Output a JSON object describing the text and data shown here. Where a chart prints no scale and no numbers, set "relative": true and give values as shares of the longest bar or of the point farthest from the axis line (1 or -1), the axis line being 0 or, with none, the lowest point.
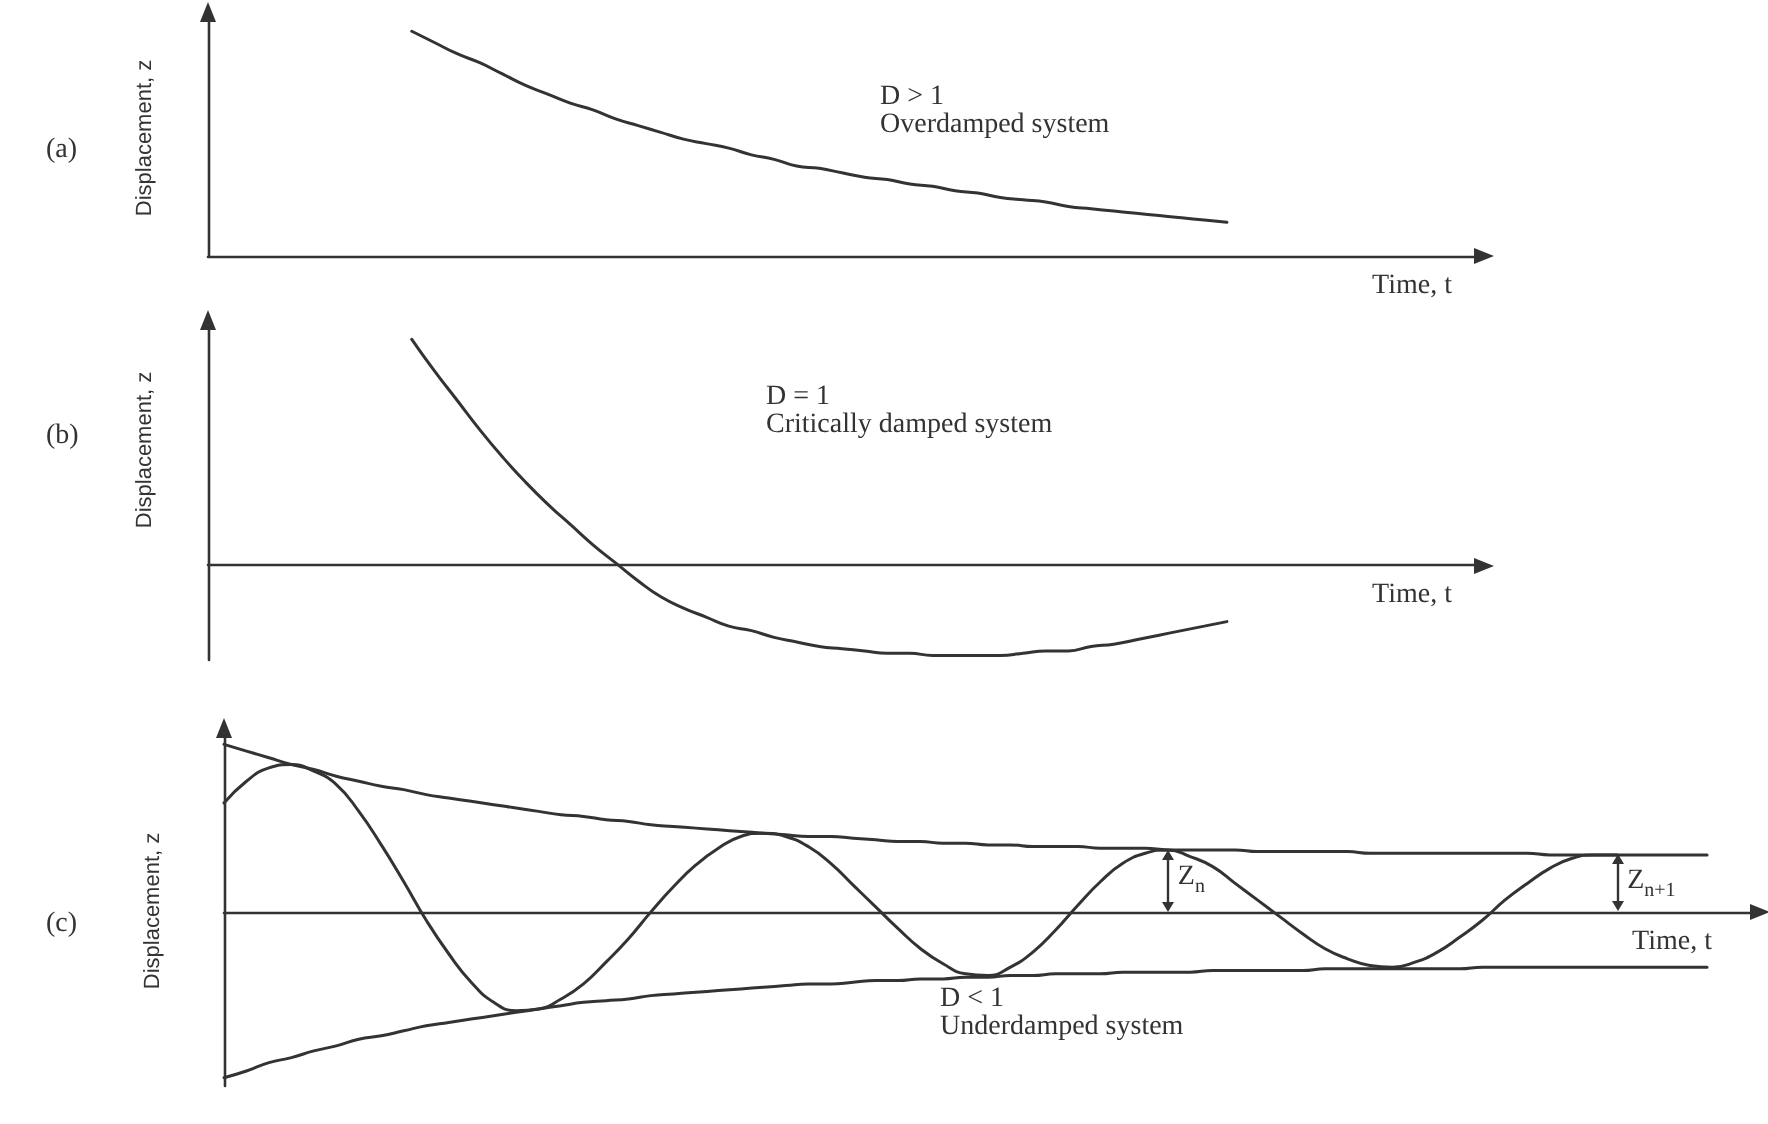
{
  "chart_data": [
    {
      "type": "line",
      "title": "(a)",
      "xlabel": "Time, t",
      "ylabel": "Displacement, z",
      "annotations": [
        "D > 1",
        "Overdamped system"
      ],
      "relative": true,
      "categories": [
        null,
        null,
        null,
        null,
        null,
        null,
        null,
        null,
        null,
        null,
        null,
        null,
        null,
        null,
        null,
        null,
        null,
        null,
        null,
        null,
        null,
        null,
        null,
        null,
        null,
        null,
        null,
        null,
        null,
        null,
        null,
        null,
        null,
        null,
        null,
        null,
        null,
        null,
        null,
        null,
        null,
        null,
        null,
        null,
        null,
        null,
        null,
        null,
        null,
        null,
        null,
        null,
        null,
        null,
        null,
        null,
        null
      ],
      "series": [
        {
          "color": "#333333",
          "values": [
            null,
            null,
            null,
            null,
            null,
            null,
            null,
            null,
            null,
            1.0,
            0.95,
            0.9,
            0.86,
            0.81,
            0.76,
            0.72,
            0.68,
            0.65,
            0.61,
            0.58,
            0.55,
            0.52,
            0.5,
            0.48,
            0.45,
            0.43,
            0.4,
            0.39,
            0.37,
            0.35,
            0.34,
            0.32,
            0.31,
            0.29,
            0.28,
            0.26,
            0.25,
            0.24,
            0.22,
            0.21,
            0.2,
            0.19,
            0.18,
            0.17,
            0.16,
            0.15,
            null,
            null,
            null,
            null,
            null,
            null,
            null,
            null,
            null,
            null,
            null
          ]
        }
      ]
    },
    {
      "type": "line",
      "title": "(b)",
      "xlabel": "Time, t",
      "ylabel": "Displacement, z",
      "annotations": [
        "D = 1",
        "Critically damped system"
      ],
      "relative": true,
      "categories": [
        null,
        null,
        null,
        null,
        null,
        null,
        null,
        null,
        null,
        null,
        null,
        null,
        null,
        null,
        null,
        null,
        null,
        null,
        null,
        null,
        null,
        null,
        null,
        null,
        null,
        null,
        null,
        null,
        null,
        null,
        null,
        null,
        null,
        null,
        null,
        null,
        null,
        null,
        null,
        null,
        null,
        null,
        null,
        null,
        null,
        null,
        null,
        null,
        null,
        null,
        null,
        null,
        null,
        null,
        null,
        null,
        null
      ],
      "series": [
        {
          "color": "#333333",
          "values": [
            null,
            null,
            null,
            null,
            null,
            null,
            null,
            null,
            null,
            1.0,
            0.86,
            0.73,
            0.6,
            0.48,
            0.37,
            0.27,
            0.18,
            0.09,
            0.01,
            -0.07,
            -0.14,
            -0.19,
            -0.23,
            -0.27,
            -0.29,
            -0.32,
            -0.34,
            -0.36,
            -0.37,
            -0.38,
            -0.39,
            -0.39,
            -0.4,
            -0.4,
            -0.4,
            -0.4,
            -0.39,
            -0.38,
            -0.38,
            -0.36,
            -0.35,
            -0.33,
            -0.31,
            -0.29,
            -0.27,
            -0.25,
            null,
            null,
            null,
            null,
            null,
            null,
            null,
            null,
            null,
            null,
            null
          ]
        }
      ]
    },
    {
      "type": "line",
      "title": "(c)",
      "xlabel": "Time, t",
      "ylabel": "Displacement, z",
      "annotations": [
        "Z$_{n}$",
        "Z$_{n+1}$",
        "D < 1",
        "Underdamped system"
      ],
      "relative": true,
      "categories": [
        null,
        null,
        null,
        null,
        null,
        null,
        null,
        null,
        null,
        null,
        null,
        null,
        null,
        null,
        null,
        null,
        null,
        null,
        null,
        null,
        null,
        null,
        null,
        null,
        null,
        null,
        null,
        null,
        null,
        null,
        null,
        null,
        null,
        null,
        null,
        null,
        null,
        null,
        null,
        null,
        null,
        null,
        null,
        null,
        null,
        null,
        null,
        null,
        null,
        null,
        null,
        null,
        null,
        null,
        null,
        null,
        null,
        null,
        null,
        null,
        null,
        null,
        null,
        null,
        null,
        null,
        null,
        null,
        null
      ],
      "series": [
        {
          "color": "#333333",
          "values": [
            0.65,
            0.78,
            0.86,
            0.88,
            0.84,
            0.76,
            0.6,
            0.4,
            0.18,
            -0.05,
            -0.25,
            -0.42,
            -0.54,
            -0.59,
            -0.58,
            -0.52,
            -0.43,
            -0.3,
            -0.16,
            0.0,
            0.15,
            0.28,
            0.38,
            0.45,
            0.47,
            0.45,
            0.39,
            0.29,
            0.16,
            0.03,
            -0.1,
            -0.22,
            -0.31,
            -0.37,
            -0.38,
            -0.33,
            -0.24,
            -0.11,
            0.04,
            0.18,
            0.29,
            0.35,
            0.37,
            0.33,
            0.27,
            0.17,
            0.07,
            -0.03,
            -0.13,
            -0.22,
            -0.28,
            -0.32,
            -0.33,
            -0.3,
            -0.24,
            -0.15,
            -0.05,
            0.07,
            0.17,
            0.26,
            0.32,
            0.34,
            0.34,
            null,
            null,
            null,
            null,
            null,
            null
          ]
        },
        {
          "color": "#333333",
          "values": [
            1.0,
            0.96,
            0.92,
            0.88,
            0.85,
            0.81,
            0.78,
            0.75,
            0.73,
            0.7,
            0.68,
            0.66,
            0.64,
            0.62,
            0.6,
            0.58,
            0.57,
            0.55,
            0.54,
            0.52,
            0.51,
            0.5,
            0.49,
            0.48,
            0.47,
            0.46,
            0.45,
            0.45,
            0.44,
            0.43,
            0.42,
            0.42,
            0.41,
            0.41,
            0.4,
            0.4,
            0.39,
            0.39,
            0.39,
            0.38,
            0.38,
            0.38,
            0.37,
            0.37,
            0.37,
            0.37,
            0.36,
            0.36,
            0.36,
            0.36,
            0.36,
            0.35,
            0.35,
            0.35,
            0.35,
            0.35,
            0.35,
            0.35,
            0.35,
            0.34,
            0.34,
            0.34,
            0.34,
            0.34,
            0.34,
            0.34,
            0.34,
            null,
            null
          ]
        },
        {
          "color": "#333333",
          "values": [
            -0.99,
            -0.95,
            -0.9,
            -0.87,
            -0.83,
            -0.8,
            -0.76,
            -0.74,
            -0.71,
            -0.68,
            -0.66,
            -0.64,
            -0.62,
            -0.6,
            -0.58,
            -0.56,
            -0.54,
            -0.53,
            -0.52,
            -0.5,
            -0.49,
            -0.48,
            -0.47,
            -0.46,
            -0.45,
            -0.44,
            -0.43,
            -0.43,
            -0.42,
            -0.41,
            -0.41,
            -0.4,
            -0.4,
            -0.39,
            -0.39,
            -0.38,
            -0.38,
            -0.37,
            -0.37,
            -0.37,
            -0.36,
            -0.36,
            -0.36,
            -0.36,
            -0.35,
            -0.35,
            -0.35,
            -0.35,
            -0.35,
            -0.34,
            -0.34,
            -0.34,
            -0.34,
            -0.34,
            -0.34,
            -0.34,
            -0.33,
            -0.33,
            -0.33,
            -0.33,
            -0.33,
            -0.33,
            -0.33,
            -0.33,
            -0.33,
            -0.33,
            -0.33,
            null,
            null
          ]
        }
      ]
    }
  ]
}
